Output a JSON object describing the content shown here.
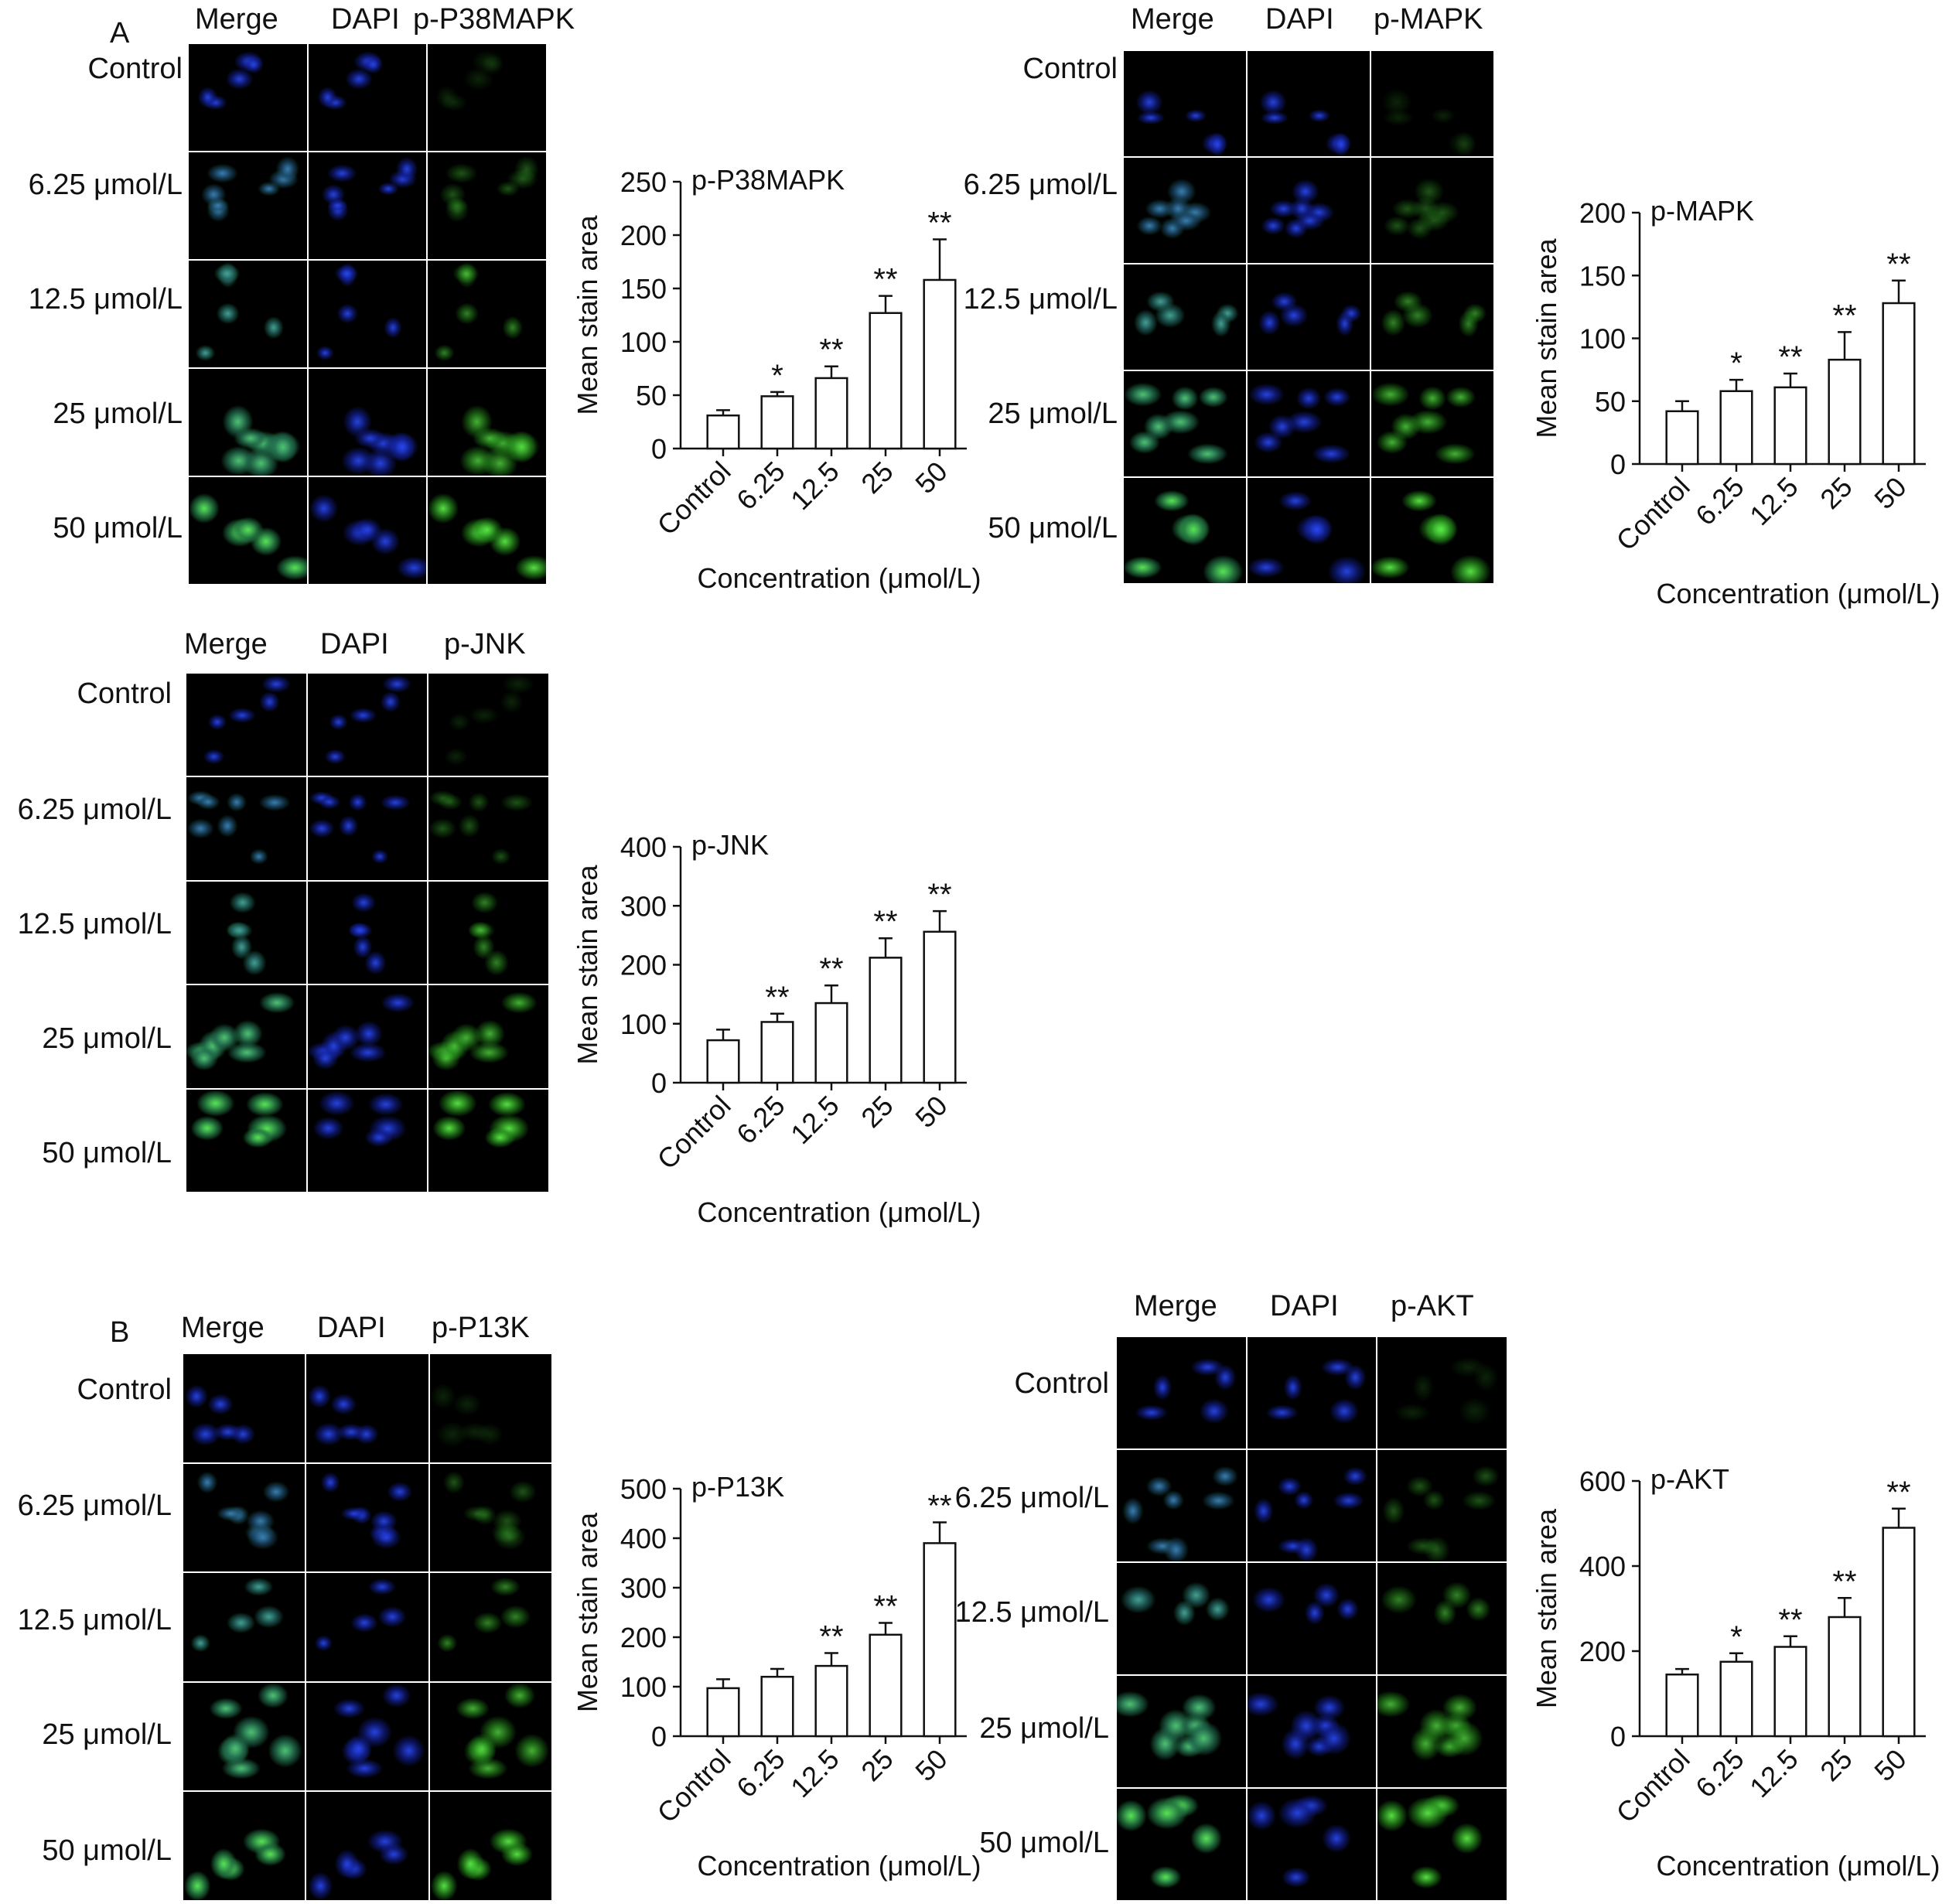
{
  "panels": {
    "A": "A",
    "B": "B"
  },
  "colors": {
    "nucleus": "#1a2dcc",
    "stain": "#44d23a",
    "cell_bg": "#000000",
    "divider": "#ffffff",
    "bar_fill": "#ffffff",
    "ink": "#111111"
  },
  "micrographs": [
    {
      "id": "p38",
      "columns": [
        "Merge",
        "DAPI",
        "p-P38MAPK"
      ],
      "rows": [
        "Control",
        "6.25 μmol/L",
        "12.5 μmol/L",
        "25 μmol/L",
        "50 μmol/L"
      ]
    },
    {
      "id": "mapk",
      "columns": [
        "Merge",
        "DAPI",
        "p-MAPK"
      ],
      "rows": [
        "Control",
        "6.25 μmol/L",
        "12.5 μmol/L",
        "25 μmol/L",
        "50 μmol/L"
      ]
    },
    {
      "id": "jnk",
      "columns": [
        "Merge",
        "DAPI",
        "p-JNK"
      ],
      "rows": [
        "Control",
        "6.25 μmol/L",
        "12.5 μmol/L",
        "25 μmol/L",
        "50 μmol/L"
      ]
    },
    {
      "id": "pi3k",
      "columns": [
        "Merge",
        "DAPI",
        "p-P13K"
      ],
      "rows": [
        "Control",
        "6.25 μmol/L",
        "12.5 μmol/L",
        "25 μmol/L",
        "50 μmol/L"
      ]
    },
    {
      "id": "akt",
      "columns": [
        "Merge",
        "DAPI",
        "p-AKT"
      ],
      "rows": [
        "Control",
        "6.25 μmol/L",
        "12.5 μmol/L",
        "25 μmol/L",
        "50 μmol/L"
      ]
    }
  ],
  "chart_data": [
    {
      "id": "p38",
      "type": "bar",
      "title": "p-P38MAPK",
      "xlabel": "Concentration (μmol/L)",
      "ylabel": "Mean stain area",
      "categories": [
        "Control",
        "6.25",
        "12.5",
        "25",
        "50"
      ],
      "values": [
        31,
        49,
        66,
        127,
        158
      ],
      "errors": [
        5,
        4,
        11,
        16,
        38
      ],
      "significance": [
        "",
        "*",
        "**",
        "**",
        "**"
      ],
      "ylim": [
        0,
        250
      ],
      "yticks": [
        0,
        50,
        100,
        150,
        200,
        250
      ]
    },
    {
      "id": "mapk",
      "type": "bar",
      "title": "p-MAPK",
      "xlabel": "Concentration (μmol/L)",
      "ylabel": "Mean stain area",
      "categories": [
        "Control",
        "6.25",
        "12.5",
        "25",
        "50"
      ],
      "values": [
        42,
        58,
        61,
        83,
        128
      ],
      "errors": [
        8,
        9,
        11,
        22,
        18
      ],
      "significance": [
        "",
        "*",
        "**",
        "**",
        "**"
      ],
      "ylim": [
        0,
        200
      ],
      "yticks": [
        0,
        50,
        100,
        150,
        200
      ]
    },
    {
      "id": "jnk",
      "type": "bar",
      "title": "p-JNK",
      "xlabel": "Concentration (μmol/L)",
      "ylabel": "Mean stain area",
      "categories": [
        "Control",
        "6.25",
        "12.5",
        "25",
        "50"
      ],
      "values": [
        72,
        103,
        135,
        212,
        256
      ],
      "errors": [
        18,
        14,
        30,
        33,
        35
      ],
      "significance": [
        "",
        "**",
        "**",
        "**",
        "**"
      ],
      "ylim": [
        0,
        400
      ],
      "yticks": [
        0,
        100,
        200,
        300,
        400
      ]
    },
    {
      "id": "pi3k",
      "type": "bar",
      "title": "p-P13K",
      "xlabel": "Concentration (μmol/L)",
      "ylabel": "Mean stain area",
      "categories": [
        "Control",
        "6.25",
        "12.5",
        "25",
        "50"
      ],
      "values": [
        97,
        120,
        142,
        205,
        390
      ],
      "errors": [
        18,
        16,
        26,
        24,
        42
      ],
      "significance": [
        "",
        "",
        "**",
        "**",
        "**"
      ],
      "ylim": [
        0,
        500
      ],
      "yticks": [
        0,
        100,
        200,
        300,
        400,
        500
      ]
    },
    {
      "id": "akt",
      "type": "bar",
      "title": "p-AKT",
      "xlabel": "Concentration (μmol/L)",
      "ylabel": "Mean stain area",
      "categories": [
        "Control",
        "6.25",
        "12.5",
        "25",
        "50"
      ],
      "values": [
        145,
        175,
        210,
        280,
        490
      ],
      "errors": [
        13,
        20,
        25,
        45,
        45
      ],
      "significance": [
        "",
        "*",
        "**",
        "**",
        "**"
      ],
      "ylim": [
        0,
        600
      ],
      "yticks": [
        0,
        200,
        400,
        600
      ]
    }
  ]
}
